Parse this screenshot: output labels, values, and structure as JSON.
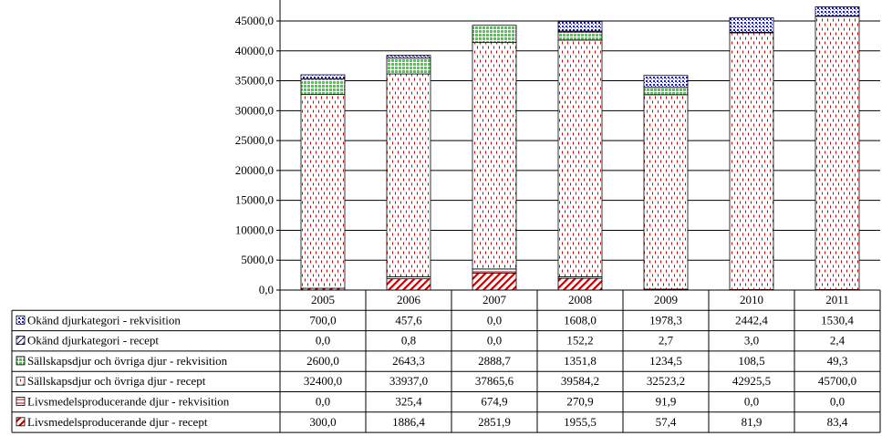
{
  "chart_data": {
    "type": "bar",
    "stacked": true,
    "categories": [
      "2005",
      "2006",
      "2007",
      "2008",
      "2009",
      "2010",
      "2011"
    ],
    "ylim": [
      0,
      45000
    ],
    "yticks": [
      "0,0",
      "5000,0",
      "10000,0",
      "15000,0",
      "20000,0",
      "25000,0",
      "30000,0",
      "35000,0",
      "40000,0",
      "45000,0"
    ],
    "grid": true,
    "legend": "data-table-left",
    "series": [
      {
        "name": "Livsmedelsproducerande djur - recept",
        "pattern": "diag-red",
        "color": "#cc0000",
        "values": [
          300.0,
          1886.4,
          2851.9,
          1955.5,
          57.4,
          81.9,
          83.4
        ],
        "labels": [
          "300,0",
          "1886,4",
          "2851,9",
          "1955,5",
          "57,4",
          "81,9",
          "83,4"
        ]
      },
      {
        "name": "Livsmedelsproducerande djur - rekvisition",
        "pattern": "hlines-red",
        "color": "#cc0000",
        "values": [
          0.0,
          325.4,
          674.9,
          270.9,
          91.9,
          0.0,
          0.0
        ],
        "labels": [
          "0,0",
          "325,4",
          "674,9",
          "270,9",
          "91,9",
          "0,0",
          "0,0"
        ]
      },
      {
        "name": "Sällskapsdjur och övriga djur - recept",
        "pattern": "dashes-red",
        "color": "#cc0000",
        "values": [
          32400.0,
          33937.0,
          37865.6,
          39584.2,
          32523.2,
          42925.5,
          45700.0
        ],
        "labels": [
          "32400,0",
          "33937,0",
          "37865,6",
          "39584,2",
          "32523,2",
          "42925,5",
          "45700,0"
        ]
      },
      {
        "name": "Sällskapsdjur och övriga djur - rekvisition",
        "pattern": "grid-green",
        "color": "#00aa00",
        "values": [
          2600.0,
          2643.3,
          2888.7,
          1351.8,
          1234.5,
          108.5,
          49.3
        ],
        "labels": [
          "2600,0",
          "2643,3",
          "2888,7",
          "1351,8",
          "1234,5",
          "108,5",
          "49,3"
        ]
      },
      {
        "name": "Okänd djurkategori - recept",
        "pattern": "diag-blue",
        "color": "#1a1aa6",
        "values": [
          0.0,
          0.8,
          0.0,
          152.2,
          2.7,
          3.0,
          2.4
        ],
        "labels": [
          "0,0",
          "0,8",
          "0,0",
          "152,2",
          "2,7",
          "3,0",
          "2,4"
        ]
      },
      {
        "name": "Okänd djurkategori - rekvisition",
        "pattern": "dots-blue",
        "color": "#1a1aa6",
        "values": [
          700.0,
          457.6,
          0.0,
          1608.0,
          1978.3,
          2442.4,
          1530.4
        ],
        "labels": [
          "700,0",
          "457,6",
          "0,0",
          "1608,0",
          "1978,3",
          "2442,4",
          "1530,4"
        ]
      }
    ],
    "table_row_order": [
      5,
      4,
      3,
      2,
      1,
      0
    ]
  }
}
